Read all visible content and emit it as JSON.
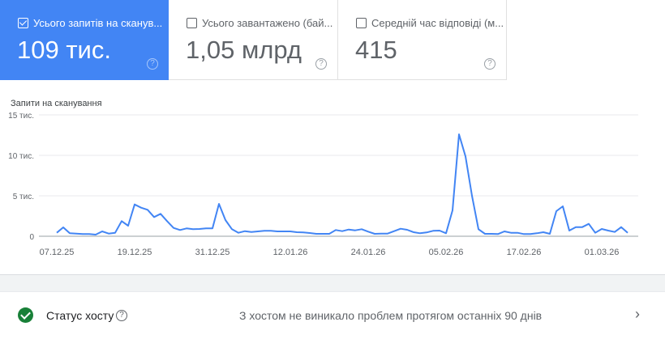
{
  "metrics": [
    {
      "label": "Усього запитів на сканув...",
      "value": "109 тис.",
      "checked": true
    },
    {
      "label": "Усього завантажено (бай...",
      "value": "1,05 млрд",
      "checked": false
    },
    {
      "label": "Середній час відповіді (м...",
      "value": "415",
      "checked": false
    }
  ],
  "help_glyph": "?",
  "accent": "#4285f4",
  "chart_data": {
    "type": "line",
    "title": "Запити на сканування",
    "ylim": [
      0,
      15
    ],
    "yticks": [
      0,
      5,
      10,
      15
    ],
    "ytick_labels": [
      "0",
      "5 тис.",
      "10 тис.",
      "15 тис."
    ],
    "xtick_labels": [
      "07.12.25",
      "19.12.25",
      "31.12.25",
      "12.01.26",
      "24.01.26",
      "05.02.26",
      "17.02.26",
      "01.03.26"
    ],
    "grid": true,
    "color": "#4285f4",
    "x": [
      "07.12.25",
      "08.12.25",
      "09.12.25",
      "10.12.25",
      "11.12.25",
      "12.12.25",
      "13.12.25",
      "14.12.25",
      "15.12.25",
      "16.12.25",
      "17.12.25",
      "18.12.25",
      "19.12.25",
      "20.12.25",
      "21.12.25",
      "22.12.25",
      "23.12.25",
      "24.12.25",
      "25.12.25",
      "26.12.25",
      "27.12.25",
      "28.12.25",
      "29.12.25",
      "30.12.25",
      "31.12.25",
      "01.01.26",
      "02.01.26",
      "03.01.26",
      "04.01.26",
      "05.01.26",
      "06.01.26",
      "07.01.26",
      "08.01.26",
      "09.01.26",
      "10.01.26",
      "11.01.26",
      "12.01.26",
      "13.01.26",
      "14.01.26",
      "15.01.26",
      "16.01.26",
      "17.01.26",
      "18.01.26",
      "19.01.26",
      "20.01.26",
      "21.01.26",
      "22.01.26",
      "23.01.26",
      "24.01.26",
      "25.01.26",
      "26.01.26",
      "27.01.26",
      "28.01.26",
      "29.01.26",
      "30.01.26",
      "31.01.26",
      "01.02.26",
      "02.02.26",
      "03.02.26",
      "04.02.26",
      "05.02.26",
      "06.02.26",
      "07.02.26",
      "08.02.26",
      "09.02.26",
      "10.02.26",
      "11.02.26",
      "12.02.26",
      "13.02.26",
      "14.02.26",
      "15.02.26",
      "16.02.26",
      "17.02.26",
      "18.02.26",
      "19.02.26",
      "20.02.26",
      "21.02.26",
      "22.02.26",
      "23.02.26",
      "24.02.26",
      "25.02.26",
      "26.02.26",
      "27.02.26",
      "28.02.26",
      "01.03.26",
      "02.03.26",
      "03.03.26",
      "04.03.26",
      "05.03.26"
    ],
    "values_thousands": [
      0.43,
      1.1,
      0.37,
      0.33,
      0.27,
      0.27,
      0.2,
      0.6,
      0.33,
      0.43,
      1.87,
      1.3,
      3.93,
      3.53,
      3.27,
      2.37,
      2.77,
      1.87,
      1.03,
      0.77,
      0.97,
      0.87,
      0.9,
      0.97,
      0.97,
      4.0,
      2.0,
      0.87,
      0.43,
      0.63,
      0.53,
      0.6,
      0.67,
      0.67,
      0.6,
      0.6,
      0.6,
      0.5,
      0.47,
      0.4,
      0.3,
      0.3,
      0.3,
      0.77,
      0.63,
      0.83,
      0.73,
      0.87,
      0.57,
      0.3,
      0.33,
      0.33,
      0.63,
      0.93,
      0.8,
      0.5,
      0.37,
      0.47,
      0.67,
      0.7,
      0.37,
      3.2,
      12.6,
      9.87,
      5.0,
      0.87,
      0.3,
      0.3,
      0.27,
      0.6,
      0.43,
      0.43,
      0.27,
      0.27,
      0.37,
      0.5,
      0.3,
      3.1,
      3.7,
      0.7,
      1.13,
      1.13,
      1.53,
      0.43,
      0.9,
      0.7,
      0.53,
      1.13,
      0.43
    ]
  },
  "host_status": {
    "label": "Статус хосту",
    "message": "З хостом не виникало проблем протягом останніх 90 днів",
    "status": "ok",
    "icon": "check-circle-icon",
    "chevron": "›"
  }
}
